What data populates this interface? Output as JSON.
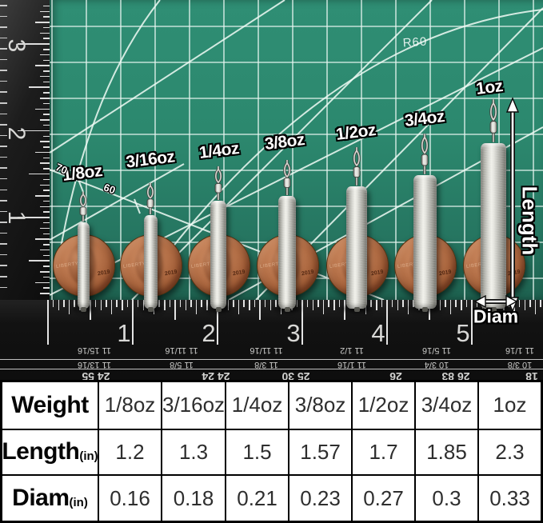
{
  "photo": {
    "sinker_labels": [
      "1/8oz",
      "3/16oz",
      "1/4oz",
      "3/8oz",
      "1/2oz",
      "3/4oz",
      "1oz"
    ],
    "mat_marking": "R60",
    "angle_markings": [
      "70",
      "60"
    ],
    "length_annotation": "Length",
    "diam_annotation": "Diam",
    "penny_motto": "LIBERTY",
    "penny_year": "2019",
    "vertical_ruler_numbers": [
      "3",
      "2",
      "1"
    ],
    "horizontal_ruler_numbers": [
      "1",
      "2",
      "3",
      "4",
      "5"
    ],
    "ruler_reverse_readings_row1": [
      "11 15/16",
      "11 11/16",
      "11 11/16",
      "11 1/2",
      "11 5/16",
      "11 1/16"
    ],
    "ruler_reverse_readings_row2": [
      "11 13/16",
      "11 5/8",
      "11 3/8",
      "11 1/16",
      "10 3/4",
      "10 3/8"
    ],
    "ruler_bottom_readings": [
      "24 55",
      "24 24",
      "25 30",
      "26",
      "26 83",
      "18"
    ]
  },
  "table": {
    "rows": [
      {
        "header": "Weight",
        "unit": "",
        "values": [
          "1/8oz",
          "3/16oz",
          "1/4oz",
          "3/8oz",
          "1/2oz",
          "3/4oz",
          "1oz"
        ]
      },
      {
        "header": "Length",
        "unit": "(in)",
        "values": [
          "1.2",
          "1.3",
          "1.5",
          "1.57",
          "1.7",
          "1.85",
          "2.3"
        ]
      },
      {
        "header": "Diam",
        "unit": "(in)",
        "values": [
          "0.16",
          "0.18",
          "0.21",
          "0.23",
          "0.27",
          "0.3",
          "0.33"
        ]
      }
    ]
  },
  "colors": {
    "mat_green": "#2c8870",
    "ruler_black": "#111111",
    "penny_copper": "#a5613a",
    "sinker_silver": "#d9d9d3",
    "table_border": "#000000",
    "annotation_white": "#ffffff"
  }
}
